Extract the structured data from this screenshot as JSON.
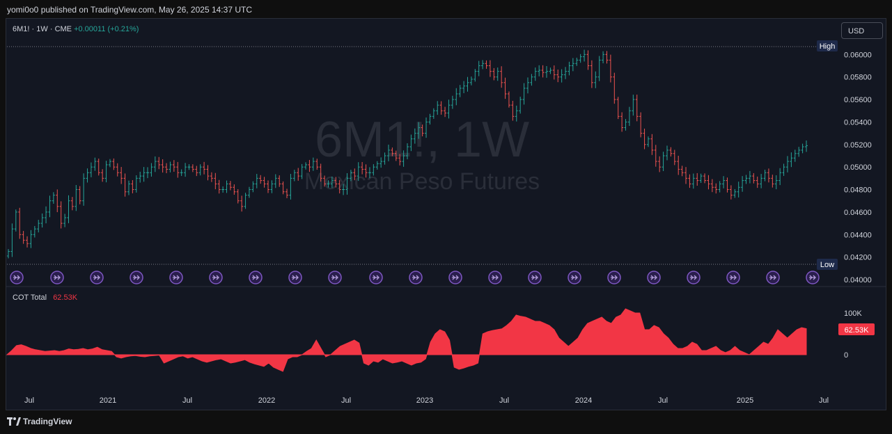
{
  "header": {
    "published": "yomi0o0 published on TradingView.com, May 26, 2025 14:37 UTC"
  },
  "legend": {
    "symbol": "6M1!",
    "interval": "1W",
    "exchange": "CME",
    "change": "+0.00011 (+0.21%)"
  },
  "watermark": {
    "title": "6M1!, 1W",
    "subtitle": "Mexican Peso Futures"
  },
  "currency_button": "USD",
  "high_label": "High",
  "low_label": "Low",
  "cot": {
    "name": "COT Total",
    "value": "62.53K",
    "ticks": [
      "100K",
      "0"
    ]
  },
  "footer": {
    "brand": "TradingView"
  },
  "colors": {
    "up": "#26a69a",
    "down": "#ef5350",
    "cot": "#f23645",
    "event_icon": "#7e57c2"
  },
  "chart_data": [
    {
      "type": "candlestick",
      "series_name": "6M1!",
      "ylim": [
        0.04,
        0.0607
      ],
      "y_ticks": [
        0.042,
        0.044,
        0.046,
        0.048,
        0.05,
        0.052,
        0.054,
        0.056,
        0.058,
        0.06
      ],
      "high": 0.0607,
      "low": 0.0414,
      "x_tick_labels": [
        "Jul",
        "2021",
        "Jul",
        "2022",
        "Jul",
        "2023",
        "Jul",
        "2024",
        "Jul",
        "2025",
        "Jul"
      ],
      "closes_weekly": [
        0.0425,
        0.0445,
        0.046,
        0.044,
        0.0435,
        0.0432,
        0.044,
        0.0445,
        0.045,
        0.0455,
        0.046,
        0.047,
        0.0475,
        0.0465,
        0.045,
        0.0455,
        0.047,
        0.0465,
        0.048,
        0.047,
        0.049,
        0.0495,
        0.05,
        0.0505,
        0.0495,
        0.049,
        0.0502,
        0.0505,
        0.05,
        0.0495,
        0.049,
        0.0478,
        0.0485,
        0.048,
        0.049,
        0.0492,
        0.0495,
        0.0495,
        0.05,
        0.0505,
        0.0502,
        0.05,
        0.0498,
        0.0502,
        0.05,
        0.0495,
        0.0495,
        0.05,
        0.05,
        0.0498,
        0.0495,
        0.05,
        0.0498,
        0.0492,
        0.049,
        0.0485,
        0.048,
        0.048,
        0.0485,
        0.0482,
        0.0478,
        0.047,
        0.0465,
        0.0475,
        0.048,
        0.0485,
        0.049,
        0.0488,
        0.0485,
        0.048,
        0.0485,
        0.049,
        0.0485,
        0.0478,
        0.0475,
        0.049,
        0.0495,
        0.0492,
        0.05,
        0.0502,
        0.05,
        0.0505,
        0.05,
        0.049,
        0.0485,
        0.0485,
        0.0488,
        0.0485,
        0.048,
        0.048,
        0.049,
        0.0495,
        0.0492,
        0.05,
        0.0498,
        0.0495,
        0.0495,
        0.05,
        0.0503,
        0.0505,
        0.051,
        0.0515,
        0.0512,
        0.0508,
        0.0505,
        0.051,
        0.0518,
        0.0525,
        0.053,
        0.0535,
        0.053,
        0.054,
        0.0545,
        0.055,
        0.0555,
        0.055,
        0.0548,
        0.0555,
        0.056,
        0.0565,
        0.057,
        0.0572,
        0.0575,
        0.0578,
        0.0585,
        0.059,
        0.0592,
        0.059,
        0.0585,
        0.058,
        0.0585,
        0.0575,
        0.0565,
        0.0555,
        0.0545,
        0.055,
        0.056,
        0.057,
        0.0575,
        0.058,
        0.0585,
        0.0586,
        0.0584,
        0.0585,
        0.0586,
        0.0582,
        0.058,
        0.0582,
        0.0585,
        0.059,
        0.0592,
        0.0595,
        0.0598,
        0.06,
        0.059,
        0.0575,
        0.058,
        0.0595,
        0.06,
        0.0595,
        0.058,
        0.056,
        0.0545,
        0.0535,
        0.054,
        0.055,
        0.056,
        0.0545,
        0.053,
        0.052,
        0.0525,
        0.0515,
        0.0505,
        0.05,
        0.051,
        0.0515,
        0.0512,
        0.0505,
        0.0498,
        0.0495,
        0.049,
        0.0485,
        0.049,
        0.0488,
        0.0492,
        0.0488,
        0.0485,
        0.0482,
        0.048,
        0.0485,
        0.0488,
        0.048,
        0.0475,
        0.0478,
        0.0482,
        0.0488,
        0.049,
        0.0492,
        0.0488,
        0.0485,
        0.049,
        0.0495,
        0.049,
        0.0485,
        0.0488,
        0.0495,
        0.05,
        0.0505,
        0.0508,
        0.0512,
        0.0515,
        0.0518,
        0.0519
      ]
    },
    {
      "type": "area",
      "series_name": "COT Total",
      "ylim": [
        -40000,
        130000
      ],
      "y_ticks": [
        0,
        100000
      ],
      "last_value": 62530,
      "values_weekly": [
        0,
        10000,
        22000,
        24000,
        20000,
        15000,
        12000,
        10000,
        8000,
        9000,
        10000,
        8000,
        10000,
        14000,
        12000,
        13000,
        15000,
        12000,
        14000,
        18000,
        12000,
        10000,
        8000,
        -5000,
        -8000,
        -5000,
        -3000,
        -2000,
        -4000,
        -5000,
        -3000,
        -2000,
        -1000,
        -20000,
        -15000,
        -10000,
        -5000,
        -3000,
        -8000,
        -5000,
        -10000,
        -15000,
        -18000,
        -15000,
        -12000,
        -10000,
        -15000,
        -20000,
        -18000,
        -15000,
        -12000,
        -18000,
        -22000,
        -25000,
        -28000,
        -20000,
        -30000,
        -35000,
        -40000,
        -10000,
        -5000,
        -5000,
        0,
        8000,
        15000,
        35000,
        15000,
        -5000,
        0,
        10000,
        20000,
        25000,
        30000,
        35000,
        28000,
        -20000,
        -25000,
        -15000,
        -18000,
        -10000,
        -15000,
        -20000,
        -18000,
        -15000,
        -20000,
        -25000,
        -20000,
        -18000,
        -10000,
        30000,
        50000,
        60000,
        55000,
        35000,
        -30000,
        -35000,
        -32000,
        -28000,
        -25000,
        -20000,
        50000,
        55000,
        58000,
        60000,
        62000,
        70000,
        80000,
        95000,
        92000,
        90000,
        85000,
        80000,
        80000,
        75000,
        70000,
        60000,
        40000,
        30000,
        20000,
        30000,
        40000,
        60000,
        75000,
        80000,
        85000,
        90000,
        80000,
        75000,
        90000,
        95000,
        110000,
        105000,
        100000,
        100000,
        60000,
        60000,
        70000,
        65000,
        50000,
        40000,
        25000,
        15000,
        15000,
        20000,
        30000,
        25000,
        10000,
        10000,
        15000,
        20000,
        10000,
        5000,
        10000,
        20000,
        10000,
        5000,
        0,
        10000,
        20000,
        30000,
        25000,
        40000,
        60000,
        50000,
        40000,
        50000,
        60000,
        65000,
        62530
      ]
    }
  ]
}
